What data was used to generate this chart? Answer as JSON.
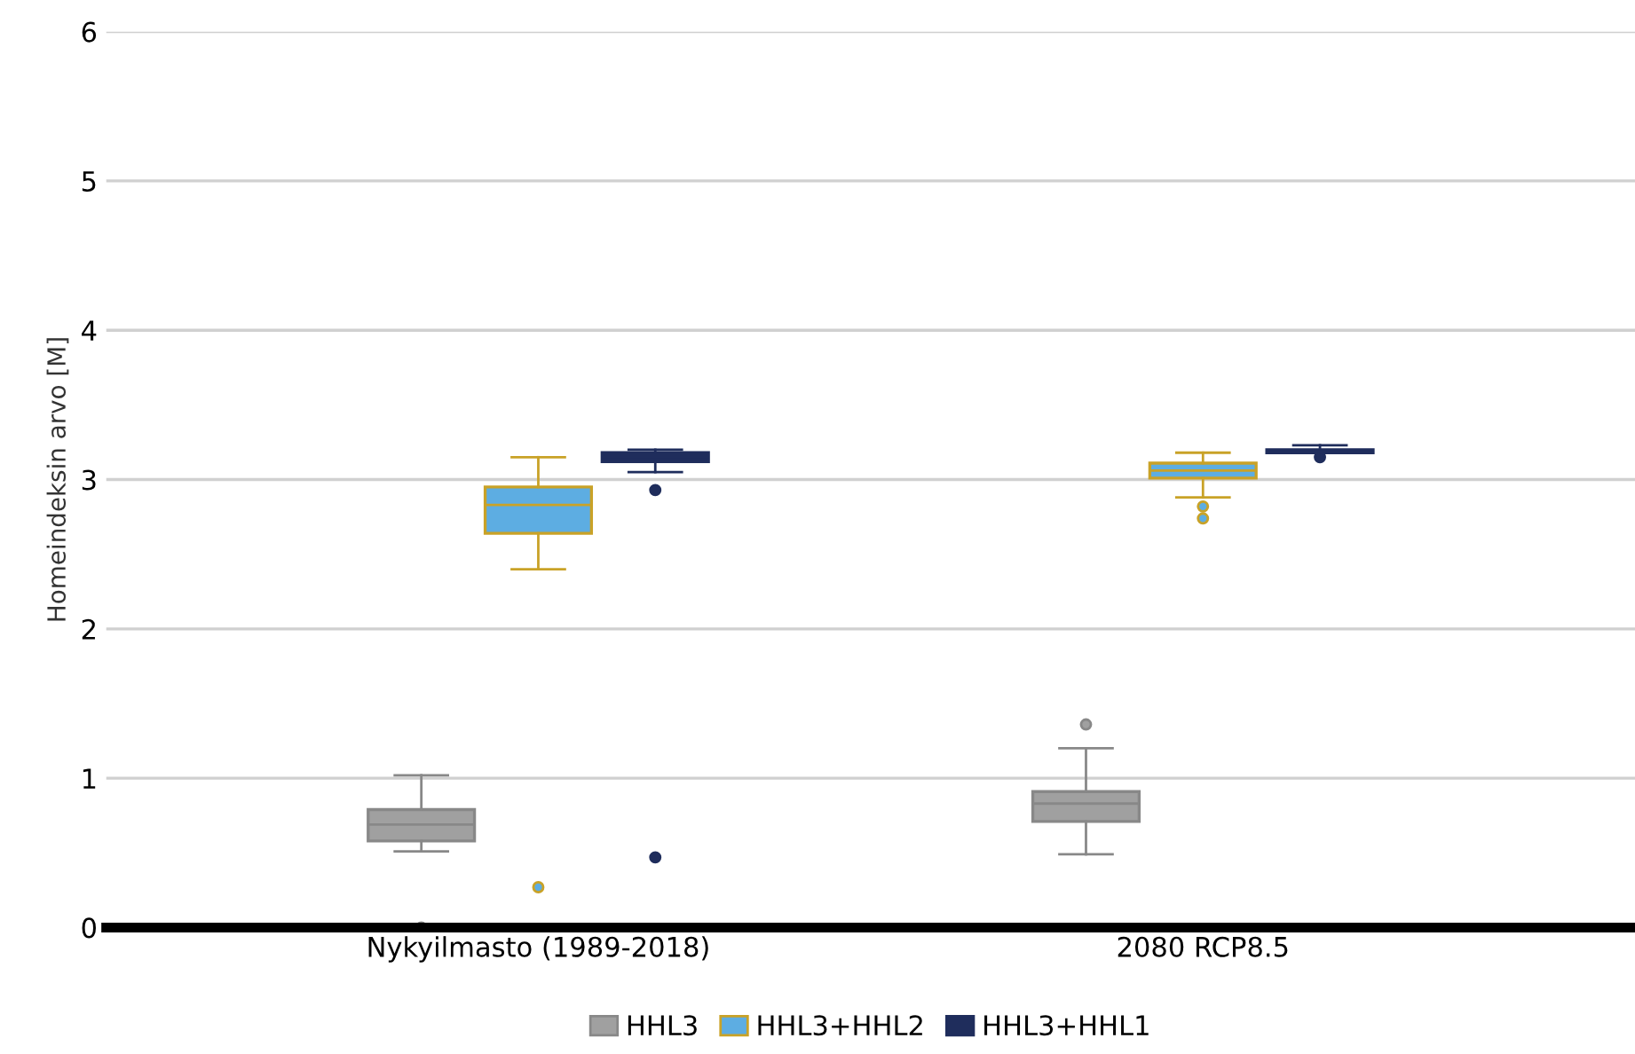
{
  "chart_data": {
    "type": "box",
    "ylabel": "Homeindeksin arvo [M]",
    "categories": [
      "Nykyilmasto (1989-2018)",
      "2080 RCP8.5"
    ],
    "ylim": [
      0,
      6
    ],
    "yticks": [
      0,
      1,
      2,
      3,
      4,
      5,
      6
    ],
    "grid": "y",
    "legend": "bottom",
    "series": [
      {
        "name": "HHL3",
        "color": "#a0a0a0",
        "boxes": [
          {
            "low": 0.51,
            "q1": 0.58,
            "median": 0.69,
            "q3": 0.79,
            "high": 1.02,
            "outliers": [
              0.0
            ]
          },
          {
            "low": 0.49,
            "q1": 0.71,
            "median": 0.83,
            "q3": 0.91,
            "high": 1.2,
            "outliers": [
              1.36
            ]
          }
        ]
      },
      {
        "name": "HHL3+HHL2",
        "color": "#5dade2",
        "boxes": [
          {
            "low": 2.4,
            "q1": 2.64,
            "median": 2.83,
            "q3": 2.95,
            "high": 3.15,
            "outliers": [
              0.27
            ]
          },
          {
            "low": 2.88,
            "q1": 3.01,
            "median": 3.06,
            "q3": 3.11,
            "high": 3.18,
            "outliers": [
              2.82,
              2.74
            ]
          }
        ]
      },
      {
        "name": "HHL3+HHL1",
        "color": "#1f2d5c",
        "boxes": [
          {
            "low": 3.05,
            "q1": 3.12,
            "median": 3.15,
            "q3": 3.18,
            "high": 3.2,
            "outliers": [
              2.93,
              0.47
            ]
          },
          {
            "low": 3.18,
            "q1": 3.18,
            "median": 3.19,
            "q3": 3.2,
            "high": 3.23,
            "outliers": [
              3.15
            ]
          }
        ]
      }
    ]
  }
}
